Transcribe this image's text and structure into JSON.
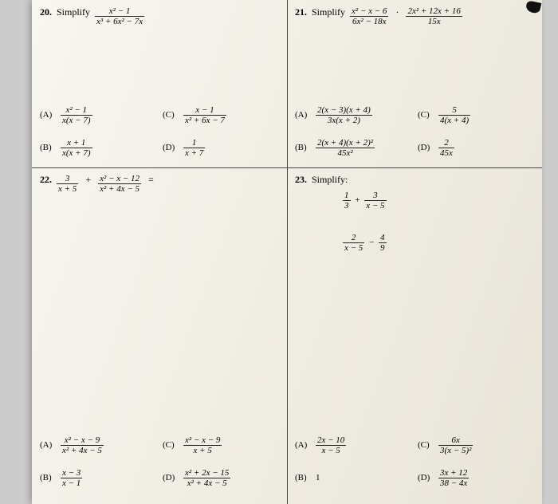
{
  "background_color": "#cccccc",
  "paper_color_gradient": [
    "#f8f6f0",
    "#f0ede4",
    "#e8e4d8"
  ],
  "grid_line_color": "#444444",
  "text_color": "#222222",
  "font_family": "serif",
  "q20": {
    "number": "20.",
    "word": "Simplify",
    "expr_num": "x² − 1",
    "expr_den": "x³ + 6x² − 7x",
    "choices": {
      "A": {
        "num": "x² − 1",
        "den": "x(x − 7)"
      },
      "B": {
        "num": "x + 1",
        "den": "x(x + 7)"
      },
      "C": {
        "num": "x − 1",
        "den": "x² + 6x − 7"
      },
      "D": {
        "num": "1",
        "den": "x + 7"
      }
    }
  },
  "q21": {
    "number": "21.",
    "word": "Simplify",
    "expr1_num": "x² − x − 6",
    "expr1_den": "6x² − 18x",
    "op": "·",
    "expr2_num": "2x² + 12x + 16",
    "expr2_den": "15x",
    "choices": {
      "A": {
        "num": "2(x − 3)(x + 4)",
        "den": "3x(x + 2)"
      },
      "B": {
        "num": "2(x + 4)(x + 2)²",
        "den": "45x²"
      },
      "C": {
        "num": "5",
        "den": "4(x + 4)"
      },
      "D": {
        "num": "2",
        "den": "45x"
      }
    }
  },
  "q22": {
    "number": "22.",
    "expr1_num": "3",
    "expr1_den": "x + 5",
    "op": "+",
    "expr2_num": "x² − x − 12",
    "expr2_den": "x² + 4x − 5",
    "eq": "=",
    "choices": {
      "A": {
        "num": "x² − x − 9",
        "den": "x² + 4x − 5"
      },
      "B": {
        "num": "x − 3",
        "den": "x − 1"
      },
      "C": {
        "num": "x² − x − 9",
        "den": "x + 5"
      },
      "D": {
        "num": "x² + 2x − 15",
        "den": "x² + 4x − 5"
      }
    }
  },
  "q23": {
    "number": "23.",
    "word": "Simplify:",
    "line1_a_num": "1",
    "line1_a_den": "3",
    "line1_op": "+",
    "line1_b_num": "3",
    "line1_b_den": "x − 5",
    "line2_a_num": "2",
    "line2_a_den": "x − 5",
    "line2_op": "−",
    "line2_b_num": "4",
    "line2_b_den": "9",
    "choices": {
      "A": {
        "num": "2x − 10",
        "den": "x − 5"
      },
      "B": {
        "text": "1"
      },
      "C": {
        "num": "6x",
        "den": "3(x − 5)²"
      },
      "D": {
        "num": "3x + 12",
        "den": "38 − 4x"
      }
    }
  },
  "labels": {
    "A": "(A)",
    "B": "(B)",
    "C": "(C)",
    "D": "(D)"
  }
}
